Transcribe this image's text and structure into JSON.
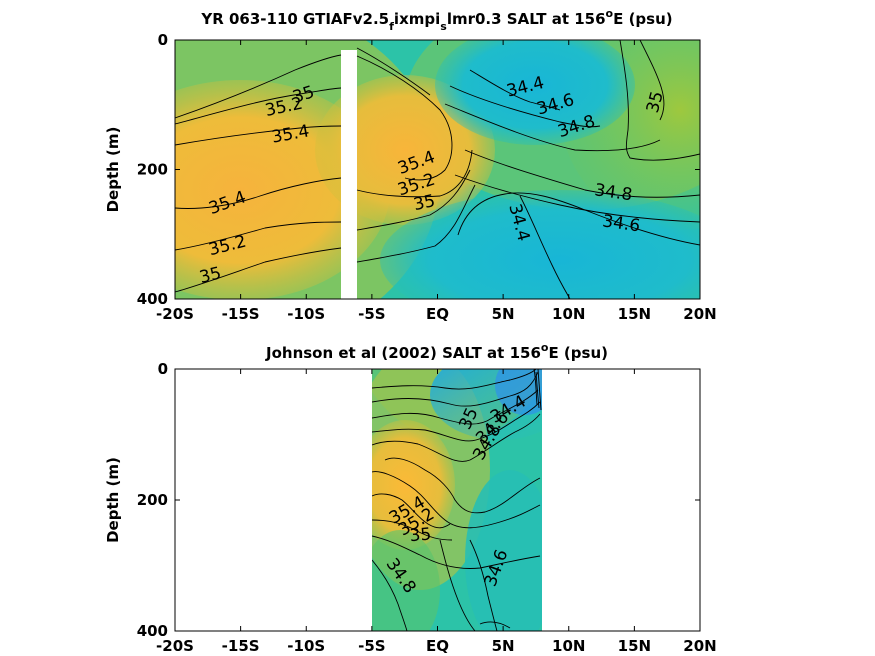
{
  "chart_data": [
    {
      "type": "heatmap",
      "title_main": "YR 063-110 GTIAFv2.5",
      "title_sub1": "f",
      "title_mid": "ixmpi",
      "title_sub2": "s",
      "title_tail": "lmr0.3 SALT at 156",
      "title_sup": "o",
      "title_end": "E (psu)",
      "ylabel": "Depth (m)",
      "xlim": [
        -20,
        20
      ],
      "ylim": [
        0,
        400
      ],
      "x_ticks": [
        -20,
        -15,
        -10,
        -5,
        0,
        5,
        10,
        15,
        20
      ],
      "x_tick_labels": [
        "-20S",
        "-15S",
        "-10S",
        "-5S",
        "EQ",
        "5N",
        "10N",
        "15N",
        "20N"
      ],
      "y_ticks": [
        0,
        200,
        400
      ],
      "y_tick_labels": [
        "0",
        "200",
        "400"
      ],
      "gap_x": [
        -7.2,
        -6.0
      ],
      "contour_labels": [
        {
          "text": "35",
          "x": -10.2,
          "y": 85,
          "rot": -18
        },
        {
          "text": "35.2",
          "x": -11.7,
          "y": 104,
          "rot": -12
        },
        {
          "text": "35.4",
          "x": -11.2,
          "y": 146,
          "rot": -10
        },
        {
          "text": "35.4",
          "x": -16.0,
          "y": 252,
          "rot": -20
        },
        {
          "text": "35.2",
          "x": -16.0,
          "y": 318,
          "rot": -14
        },
        {
          "text": "35",
          "x": -17.3,
          "y": 364,
          "rot": -14
        },
        {
          "text": "35.4",
          "x": -1.6,
          "y": 190,
          "rot": -20
        },
        {
          "text": "35.2",
          "x": -1.6,
          "y": 224,
          "rot": -18
        },
        {
          "text": "35",
          "x": -1.0,
          "y": 252,
          "rot": -12
        },
        {
          "text": "34.4",
          "x": 6.7,
          "y": 73,
          "rot": -14
        },
        {
          "text": "34.6",
          "x": 9.0,
          "y": 100,
          "rot": -16
        },
        {
          "text": "34.8",
          "x": 10.6,
          "y": 134,
          "rot": -18
        },
        {
          "text": "35",
          "x": 16.6,
          "y": 96,
          "rot": -75
        },
        {
          "text": "34.8",
          "x": 13.4,
          "y": 236,
          "rot": 8
        },
        {
          "text": "34.6",
          "x": 14.0,
          "y": 284,
          "rot": 8
        },
        {
          "text": "34.4",
          "x": 6.2,
          "y": 282,
          "rot": 75
        }
      ]
    },
    {
      "type": "heatmap",
      "title_main": "Johnson et al (2002) SALT at 156",
      "title_sup": "o",
      "title_end": "E (psu)",
      "ylabel": "Depth (m)",
      "xlim": [
        -20,
        20
      ],
      "ylim": [
        0,
        400
      ],
      "x_ticks": [
        -20,
        -15,
        -10,
        -5,
        0,
        5,
        10,
        15,
        20
      ],
      "x_tick_labels": [
        "-20S",
        "-15S",
        "-10S",
        "-5S",
        "EQ",
        "5N",
        "10N",
        "15N",
        "20N"
      ],
      "y_ticks": [
        0,
        200,
        400
      ],
      "y_tick_labels": [
        "0",
        "200",
        "400"
      ],
      "data_x_range": [
        -5,
        8
      ],
      "contour_labels": [
        {
          "text": "34.4",
          "x": 5.4,
          "y": 62,
          "rot": -30
        },
        {
          "text": "34.6",
          "x": 4.2,
          "y": 90,
          "rot": -45
        },
        {
          "text": "34.8",
          "x": 3.8,
          "y": 112,
          "rot": -60
        },
        {
          "text": "35",
          "x": 2.4,
          "y": 76,
          "rot": -65
        },
        {
          "text": "35.4",
          "x": -2.3,
          "y": 216,
          "rot": -30
        },
        {
          "text": "35.2",
          "x": -1.6,
          "y": 234,
          "rot": -30
        },
        {
          "text": "35",
          "x": -1.3,
          "y": 254,
          "rot": -5
        },
        {
          "text": "34.8",
          "x": -2.8,
          "y": 316,
          "rot": 55
        },
        {
          "text": "34.6",
          "x": 4.5,
          "y": 304,
          "rot": -70
        }
      ]
    }
  ]
}
